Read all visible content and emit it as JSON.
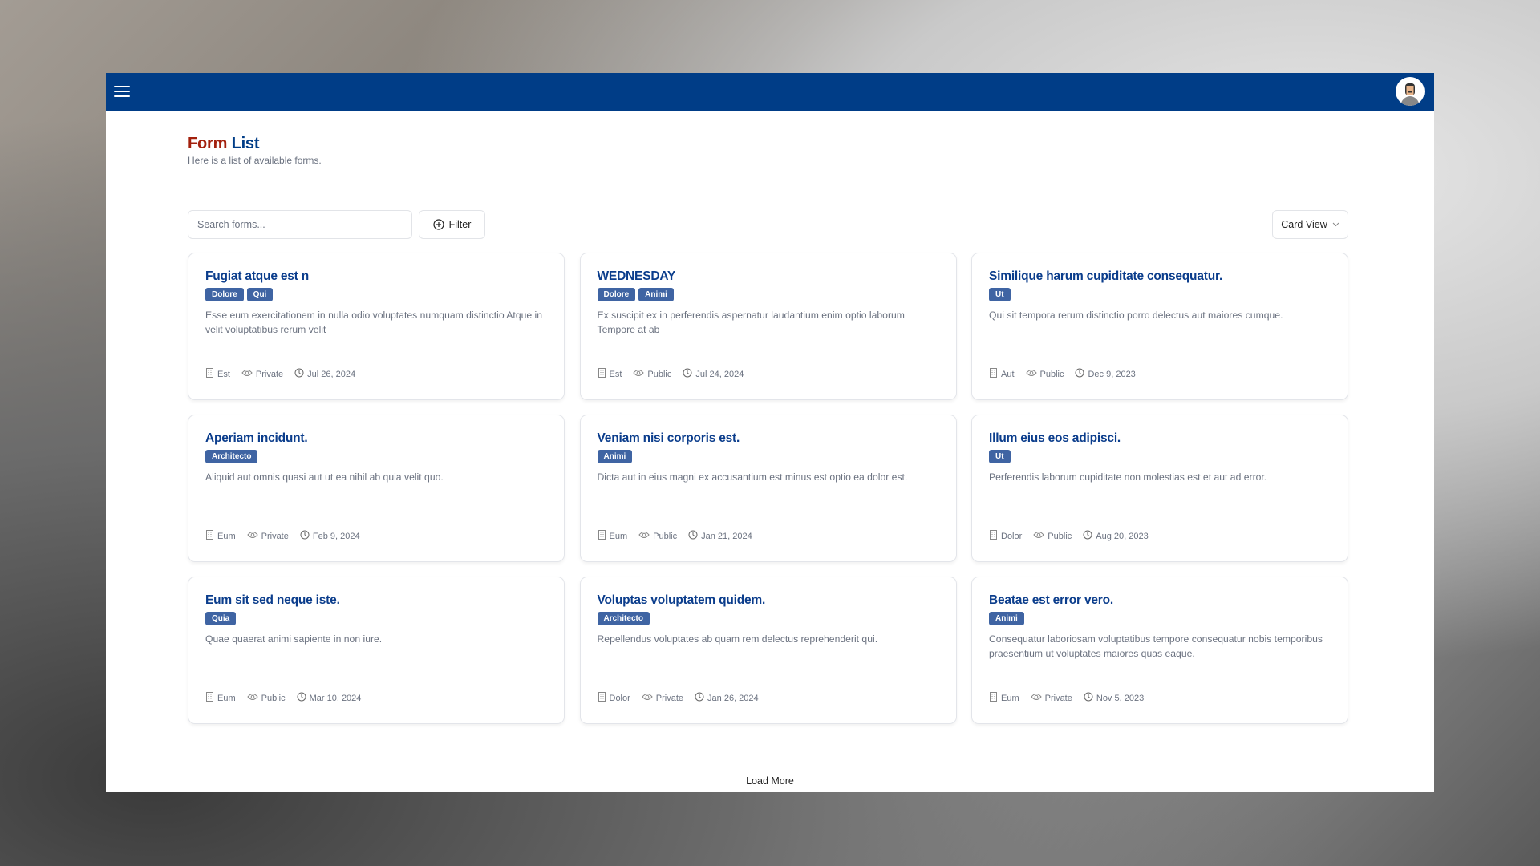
{
  "page": {
    "title_part1": "Form",
    "title_part2": "List",
    "subtitle": "Here is a list of available forms."
  },
  "toolbar": {
    "search_placeholder": "Search forms...",
    "search_value": "",
    "filter_label": "Filter",
    "view_label": "Card View"
  },
  "colors": {
    "header": "#003d87",
    "title_accent": "#a3200d",
    "title_primary": "#003d87",
    "badge": "#3f64a3"
  },
  "cards": [
    {
      "title": "Fugiat atque est n",
      "tags": [
        "Dolore",
        "Qui"
      ],
      "description": "Esse eum exercitationem in nulla odio voluptates numquam distinctio Atque in velit voluptatibus rerum velit",
      "category": "Est",
      "visibility": "Private",
      "date": "Jul 26, 2024"
    },
    {
      "title": "WEDNESDAY",
      "tags": [
        "Dolore",
        "Animi"
      ],
      "description": "Ex suscipit ex in perferendis aspernatur laudantium enim optio laborum Tempore at ab",
      "category": "Est",
      "visibility": "Public",
      "date": "Jul 24, 2024"
    },
    {
      "title": "Similique harum cupiditate consequatur.",
      "tags": [
        "Ut"
      ],
      "description": "Qui sit tempora rerum distinctio porro delectus aut maiores cumque.",
      "category": "Aut",
      "visibility": "Public",
      "date": "Dec 9, 2023"
    },
    {
      "title": "Aperiam incidunt.",
      "tags": [
        "Architecto"
      ],
      "description": "Aliquid aut omnis quasi aut ut ea nihil ab quia velit quo.",
      "category": "Eum",
      "visibility": "Private",
      "date": "Feb 9, 2024"
    },
    {
      "title": "Veniam nisi corporis est.",
      "tags": [
        "Animi"
      ],
      "description": "Dicta aut in eius magni ex accusantium est minus est optio ea dolor est.",
      "category": "Eum",
      "visibility": "Public",
      "date": "Jan 21, 2024"
    },
    {
      "title": "Illum eius eos adipisci.",
      "tags": [
        "Ut"
      ],
      "description": "Perferendis laborum cupiditate non molestias est et aut ad error.",
      "category": "Dolor",
      "visibility": "Public",
      "date": "Aug 20, 2023"
    },
    {
      "title": "Eum sit sed neque iste.",
      "tags": [
        "Quia"
      ],
      "description": "Quae quaerat animi sapiente in non iure.",
      "category": "Eum",
      "visibility": "Public",
      "date": "Mar 10, 2024"
    },
    {
      "title": "Voluptas voluptatem quidem.",
      "tags": [
        "Architecto"
      ],
      "description": "Repellendus voluptates ab quam rem delectus reprehenderit qui.",
      "category": "Dolor",
      "visibility": "Private",
      "date": "Jan 26, 2024"
    },
    {
      "title": "Beatae est error vero.",
      "tags": [
        "Animi"
      ],
      "description": "Consequatur laboriosam voluptatibus tempore consequatur nobis temporibus praesentium ut voluptates maiores quas eaque.",
      "category": "Eum",
      "visibility": "Private",
      "date": "Nov 5, 2023"
    }
  ],
  "load_more_label": "Load More",
  "icons": {
    "menu": "hamburger-icon",
    "avatar": "user-avatar",
    "filter": "plus-circle-icon",
    "view": "chevron-down-icon",
    "category": "building-icon",
    "visibility": "eye-icon",
    "date": "clock-icon"
  }
}
